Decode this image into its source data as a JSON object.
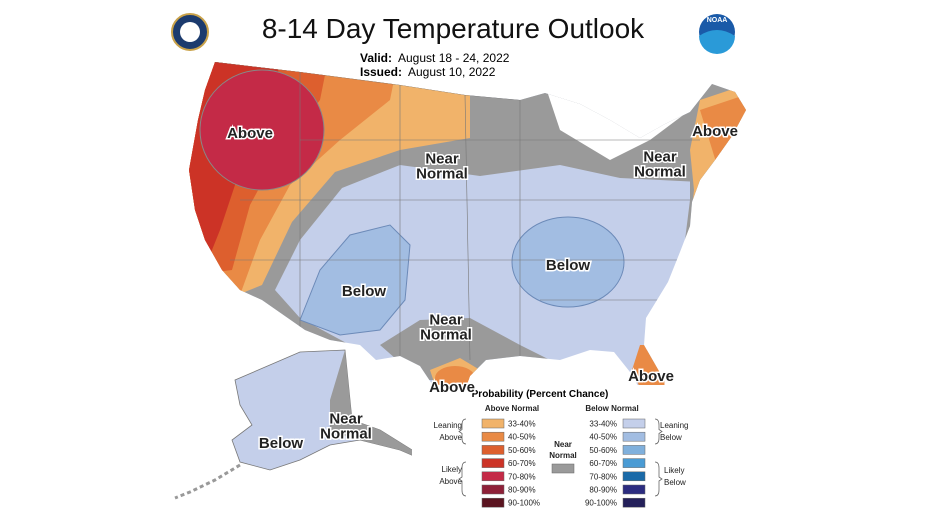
{
  "header": {
    "title": "8-14 Day Temperature Outlook",
    "valid_label": "Valid:",
    "valid": "August 18 - 24, 2022",
    "issued_label": "Issued:",
    "issued": "August 10, 2022",
    "noaa_logo": "NOAA"
  },
  "map_labels": [
    {
      "lines": [
        "Above"
      ]
    },
    {
      "lines": [
        "Near",
        "Normal"
      ]
    },
    {
      "lines": [
        "Above"
      ]
    },
    {
      "lines": [
        "Near",
        "Normal"
      ]
    },
    {
      "lines": [
        "Below"
      ]
    },
    {
      "lines": [
        "Below"
      ]
    },
    {
      "lines": [
        "Near",
        "Normal"
      ]
    },
    {
      "lines": [
        "Above"
      ]
    },
    {
      "lines": [
        "Above"
      ]
    },
    {
      "lines": [
        "Below"
      ]
    },
    {
      "lines": [
        "Near",
        "Normal"
      ]
    }
  ],
  "legend": {
    "title": "Probability (Percent Chance)",
    "above_header": "Above Normal",
    "below_header": "Below Normal",
    "above_bins": [
      {
        "label": "33-40%",
        "color": "#f1b36a"
      },
      {
        "label": "40-50%",
        "color": "#e98a45"
      },
      {
        "label": "50-60%",
        "color": "#dd5f2e"
      },
      {
        "label": "60-70%",
        "color": "#cc3326"
      },
      {
        "label": "70-80%",
        "color": "#c42a47"
      },
      {
        "label": "80-90%",
        "color": "#8e2038"
      },
      {
        "label": "90-100%",
        "color": "#5a1420"
      }
    ],
    "below_bins": [
      {
        "label": "33-40%",
        "color": "#c4cfea"
      },
      {
        "label": "40-50%",
        "color": "#a2bde2"
      },
      {
        "label": "50-60%",
        "color": "#80b0dc"
      },
      {
        "label": "60-70%",
        "color": "#4a9bd4"
      },
      {
        "label": "70-80%",
        "color": "#1a6aa8"
      },
      {
        "label": "80-90%",
        "color": "#2c2c80"
      },
      {
        "label": "90-100%",
        "color": "#24205a"
      }
    ],
    "leaning_above": [
      "Leaning",
      "Above"
    ],
    "likely_above": [
      "Likely",
      "Above"
    ],
    "near_normal": {
      "lines": [
        "Near",
        "Normal"
      ],
      "color": "#9a9a9a"
    },
    "leaning_below": [
      "Leaning",
      "Below"
    ],
    "likely_below": [
      "Likely",
      "Below"
    ]
  }
}
